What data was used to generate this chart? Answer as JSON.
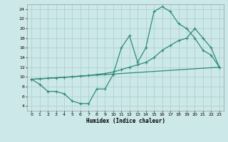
{
  "xlabel": "Humidex (Indice chaleur)",
  "background_color": "#cce8e8",
  "grid_color": "#aacccc",
  "line_color": "#2e8b7a",
  "xlim": [
    -0.5,
    23.5
  ],
  "ylim": [
    3.0,
    25.0
  ],
  "xticks": [
    0,
    1,
    2,
    3,
    4,
    5,
    6,
    7,
    8,
    9,
    10,
    11,
    12,
    13,
    14,
    15,
    16,
    17,
    18,
    19,
    20,
    21,
    22,
    23
  ],
  "yticks": [
    4,
    6,
    8,
    10,
    12,
    14,
    16,
    18,
    20,
    22,
    24
  ],
  "line1_x": [
    0,
    1,
    2,
    3,
    4,
    5,
    6,
    7,
    8,
    9,
    10,
    11,
    12,
    13,
    14,
    15,
    16,
    17,
    18,
    19,
    20,
    21,
    22,
    23
  ],
  "line1_y": [
    9.5,
    8.5,
    7.0,
    7.0,
    6.5,
    5.0,
    4.5,
    4.5,
    7.5,
    7.5,
    10.5,
    16.0,
    18.5,
    13.0,
    16.0,
    23.5,
    24.5,
    23.5,
    21.0,
    20.0,
    18.0,
    15.5,
    14.5,
    12.0
  ],
  "line2_x": [
    0,
    23
  ],
  "line2_y": [
    9.5,
    12.0
  ],
  "line3_x": [
    0,
    1,
    2,
    3,
    4,
    5,
    6,
    7,
    8,
    9,
    10,
    11,
    12,
    13,
    14,
    15,
    16,
    17,
    18,
    19,
    20,
    21,
    22,
    23
  ],
  "line3_y": [
    9.5,
    9.6,
    9.7,
    9.8,
    9.9,
    10.0,
    10.2,
    10.3,
    10.5,
    10.7,
    11.0,
    11.5,
    12.0,
    12.5,
    13.0,
    14.0,
    15.5,
    16.5,
    17.5,
    18.0,
    20.0,
    18.0,
    16.0,
    12.0
  ]
}
